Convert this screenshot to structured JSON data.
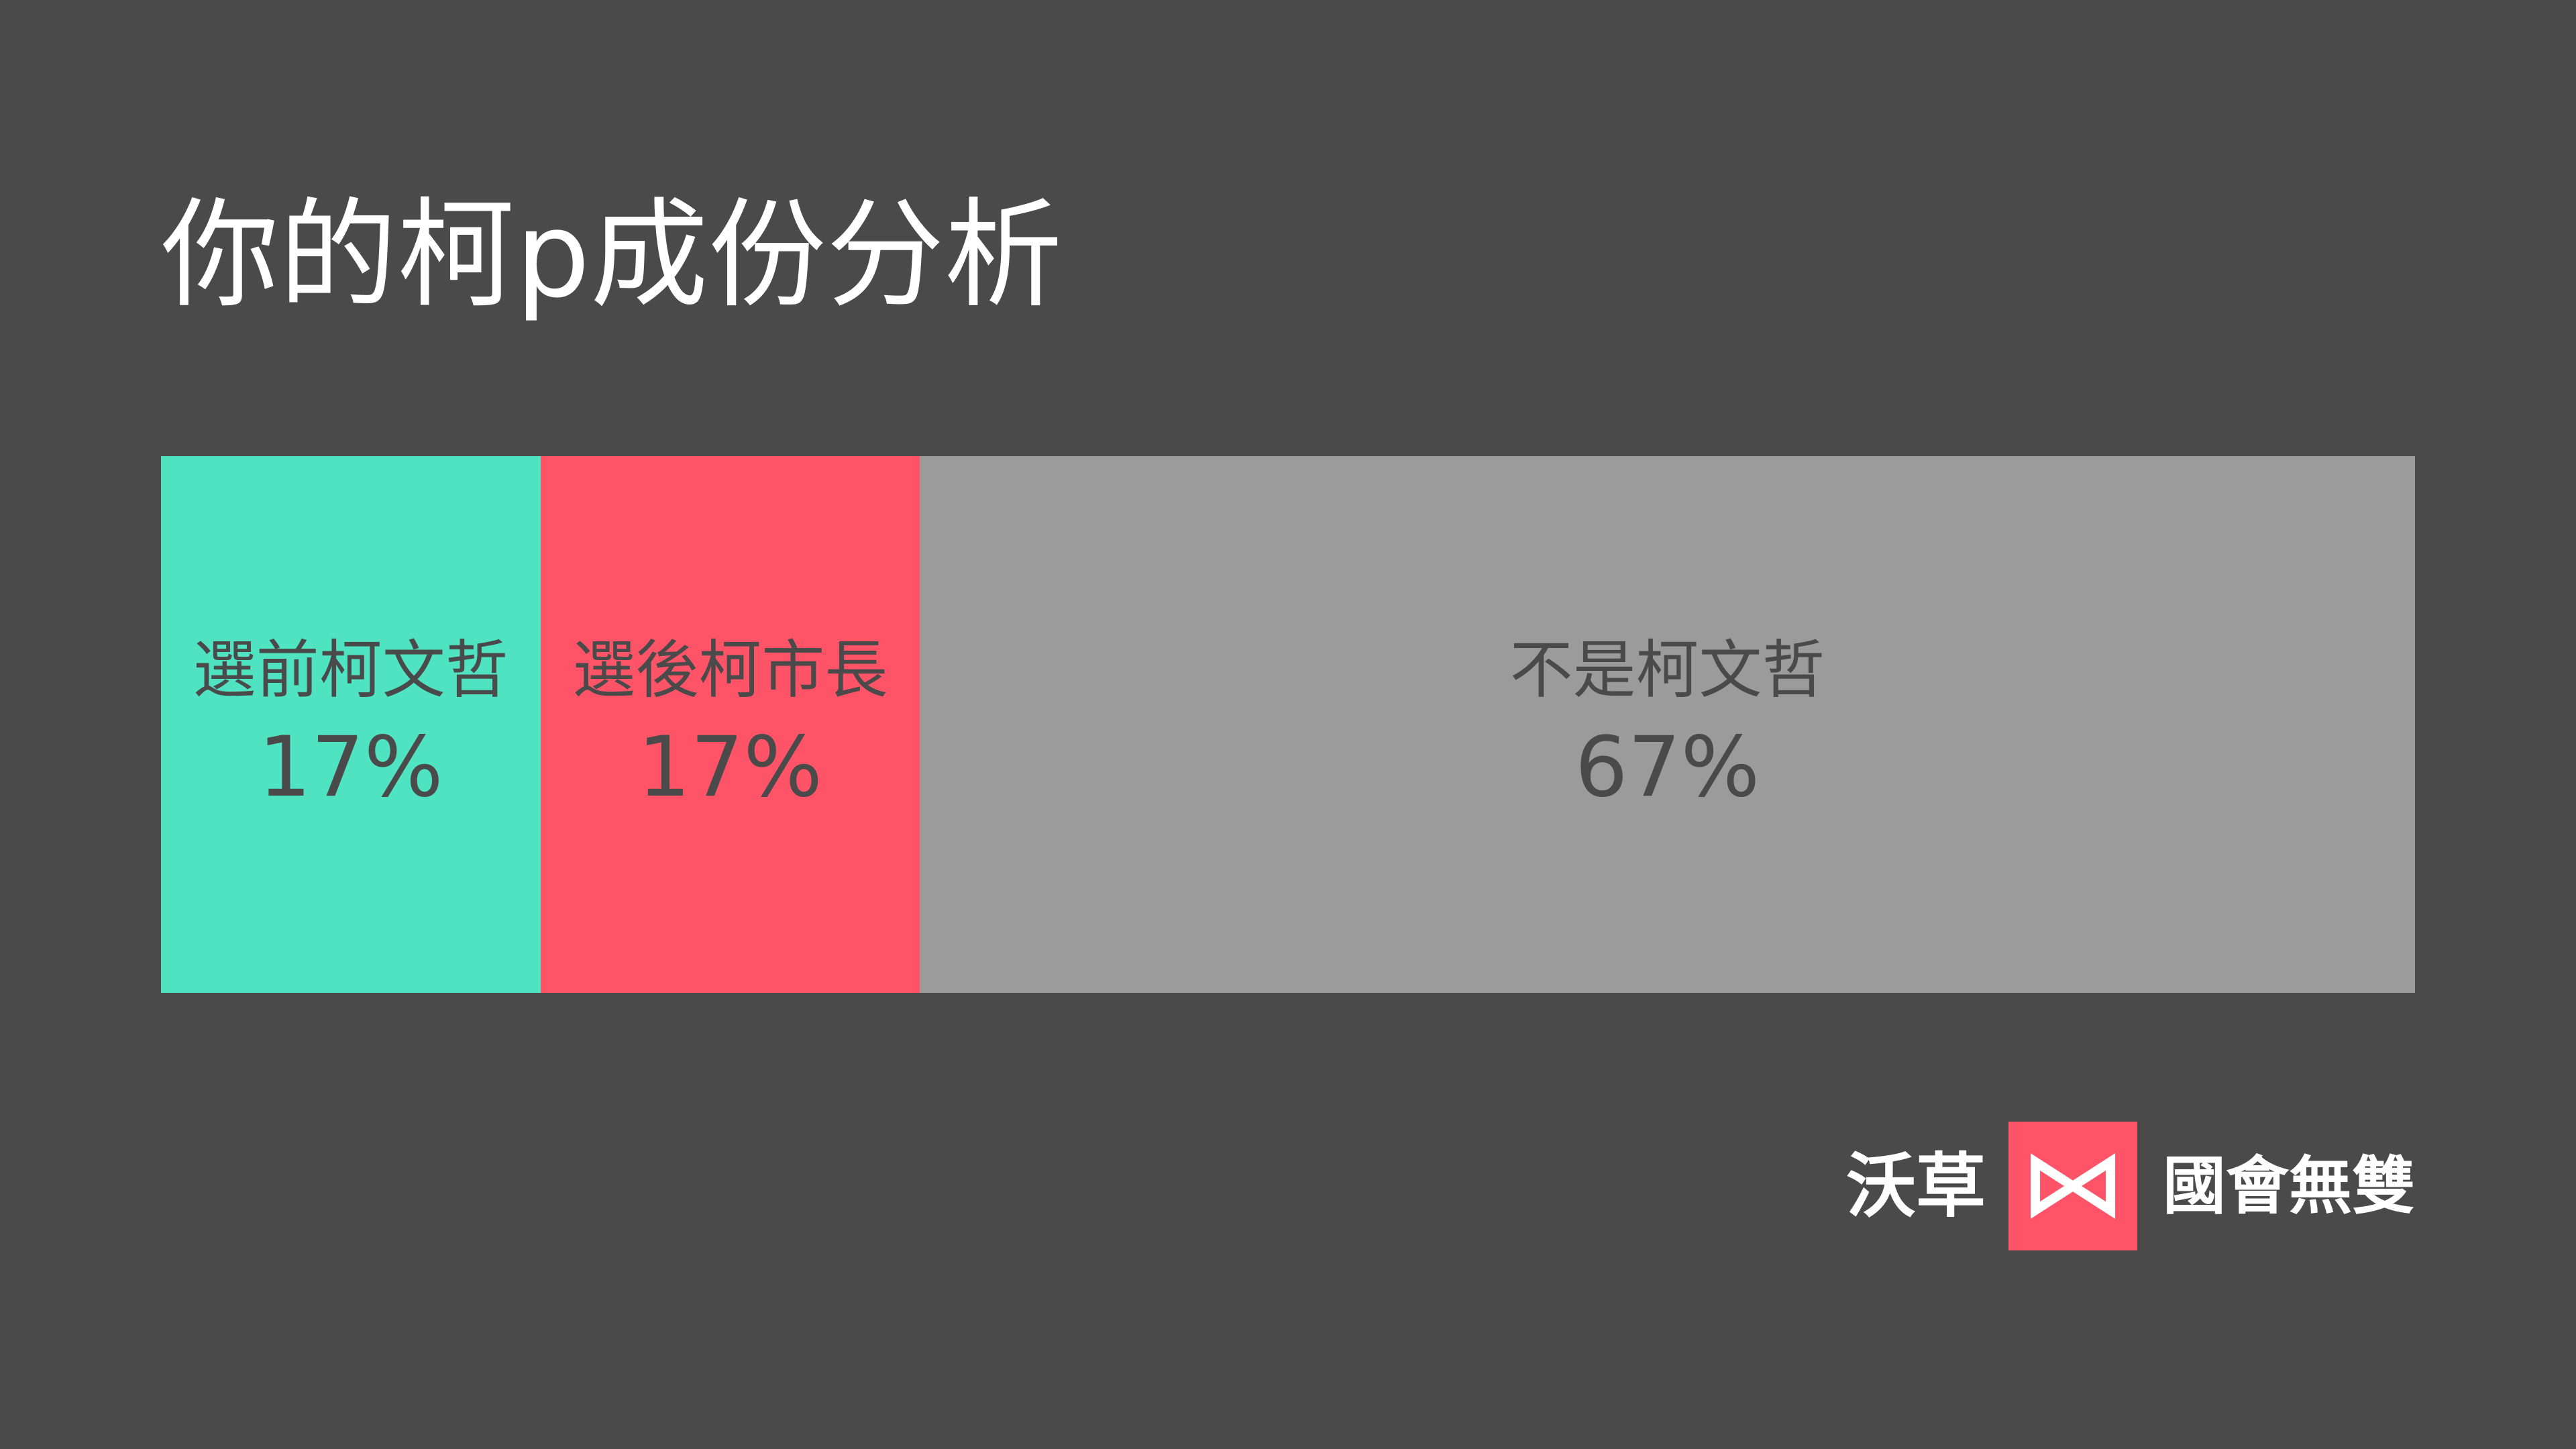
{
  "title": "你的柯p成份分析",
  "chart_data": {
    "type": "bar",
    "orientation": "horizontal-stacked",
    "title": "你的柯p成份分析",
    "categories": [
      "選前柯文哲",
      "選後柯市長",
      "不是柯文哲"
    ],
    "values": [
      17,
      17,
      67
    ],
    "value_labels": [
      "17%",
      "17%",
      "67%"
    ],
    "colors": [
      "#50e3c2",
      "#ff5468",
      "#9b9b9b"
    ],
    "label_color": "#4a4a4a",
    "legend": "none",
    "grid": false
  },
  "brand": {
    "left_text": "沃草",
    "right_text": "國會無雙",
    "logo_icon": "bowtie-icon",
    "logo_color": "#ff5468"
  }
}
